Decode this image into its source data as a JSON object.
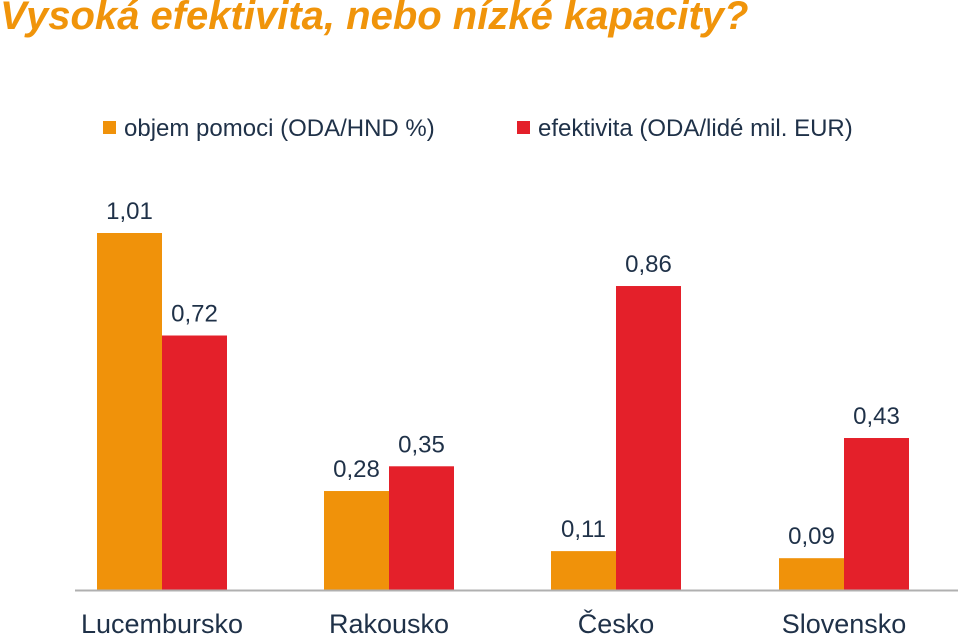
{
  "colors": {
    "title": "#F0940A",
    "objem": "#F0920A",
    "efektivita": "#E4202A",
    "label_text": "#1F3148",
    "axis": "#B0B0B0"
  },
  "title": "Vysoká efektivita, nebo nízké kapacity?",
  "chart_data": {
    "type": "bar",
    "title": "Vysoká efektivita, nebo nízké kapacity?",
    "categories": [
      "Lucembursko",
      "Rakousko",
      "Česko",
      "Slovensko"
    ],
    "series": [
      {
        "name": "objem pomoci (ODA/HND %)",
        "values": [
          1.01,
          0.28,
          0.11,
          0.09
        ],
        "labels": [
          "1,01",
          "0,28",
          "0,11",
          "0,09"
        ]
      },
      {
        "name": "efektivita (ODA/lidé mil. EUR)",
        "values": [
          0.72,
          0.35,
          0.86,
          0.43
        ],
        "labels": [
          "0,72",
          "0,35",
          "0,86",
          "0,43"
        ]
      }
    ],
    "legend": "top",
    "grid": false,
    "ylim": [
      0,
      1.01
    ]
  }
}
